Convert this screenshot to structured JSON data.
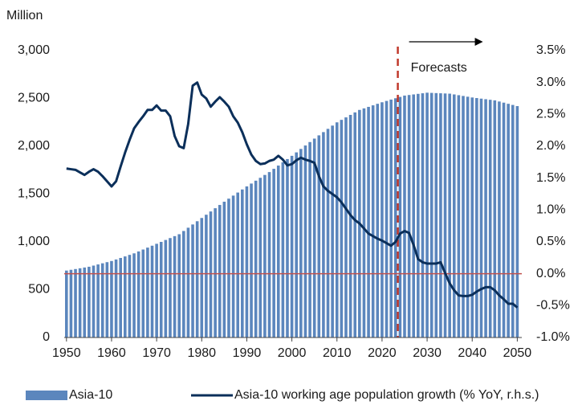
{
  "chart_data": {
    "type": "bar_line",
    "y_axis_label": "Million",
    "annotation": {
      "text": "Forecasts",
      "x": 2023.5
    },
    "x": [
      1950,
      1951,
      1952,
      1953,
      1954,
      1955,
      1956,
      1957,
      1958,
      1959,
      1960,
      1961,
      1962,
      1963,
      1964,
      1965,
      1966,
      1967,
      1968,
      1969,
      1970,
      1971,
      1972,
      1973,
      1974,
      1975,
      1976,
      1977,
      1978,
      1979,
      1980,
      1981,
      1982,
      1983,
      1984,
      1985,
      1986,
      1987,
      1988,
      1989,
      1990,
      1991,
      1992,
      1993,
      1994,
      1995,
      1996,
      1997,
      1998,
      1999,
      2000,
      2001,
      2002,
      2003,
      2004,
      2005,
      2006,
      2007,
      2008,
      2009,
      2010,
      2011,
      2012,
      2013,
      2014,
      2015,
      2016,
      2017,
      2018,
      2019,
      2020,
      2021,
      2022,
      2023,
      2024,
      2025,
      2026,
      2027,
      2028,
      2029,
      2030,
      2031,
      2032,
      2033,
      2034,
      2035,
      2036,
      2037,
      2038,
      2039,
      2040,
      2041,
      2042,
      2043,
      2044,
      2045,
      2046,
      2047,
      2048,
      2049,
      2050
    ],
    "series": [
      {
        "name": "Asia-10",
        "type": "bar",
        "color": "#5b86bd",
        "values": [
          700,
          708,
          716,
          724,
          732,
          740,
          752,
          764,
          776,
          788,
          800,
          816,
          832,
          848,
          864,
          880,
          900,
          920,
          940,
          960,
          980,
          1000,
          1020,
          1040,
          1060,
          1080,
          1114,
          1148,
          1182,
          1216,
          1250,
          1284,
          1318,
          1352,
          1386,
          1420,
          1452,
          1484,
          1516,
          1548,
          1580,
          1610,
          1640,
          1670,
          1700,
          1730,
          1764,
          1798,
          1832,
          1866,
          1900,
          1936,
          1972,
          2008,
          2044,
          2080,
          2114,
          2148,
          2182,
          2216,
          2250,
          2276,
          2302,
          2328,
          2354,
          2380,
          2396,
          2412,
          2428,
          2444,
          2460,
          2474,
          2488,
          2502,
          2516,
          2530,
          2536,
          2542,
          2548,
          2554,
          2560,
          2558,
          2556,
          2554,
          2552,
          2550,
          2542,
          2534,
          2526,
          2518,
          2510,
          2504,
          2498,
          2492,
          2486,
          2480,
          2468,
          2456,
          2444,
          2432,
          2420
        ]
      },
      {
        "name": "Asia-10 working age population growth (% YoY, r.h.s.)",
        "type": "line",
        "axis": "y2",
        "color": "#0b2f5a",
        "values": [
          1.65,
          1.64,
          1.63,
          1.59,
          1.55,
          1.6,
          1.64,
          1.6,
          1.53,
          1.45,
          1.37,
          1.45,
          1.68,
          1.9,
          2.1,
          2.28,
          2.38,
          2.47,
          2.57,
          2.57,
          2.64,
          2.56,
          2.56,
          2.47,
          2.16,
          2.0,
          1.97,
          2.35,
          2.95,
          3.0,
          2.81,
          2.75,
          2.62,
          2.7,
          2.77,
          2.7,
          2.62,
          2.47,
          2.37,
          2.22,
          2.03,
          1.87,
          1.77,
          1.72,
          1.73,
          1.77,
          1.79,
          1.85,
          1.79,
          1.7,
          1.72,
          1.78,
          1.82,
          1.79,
          1.77,
          1.74,
          1.53,
          1.37,
          1.3,
          1.25,
          1.2,
          1.12,
          1.02,
          0.92,
          0.84,
          0.79,
          0.71,
          0.63,
          0.59,
          0.55,
          0.52,
          0.48,
          0.44,
          0.5,
          0.63,
          0.67,
          0.64,
          0.45,
          0.23,
          0.18,
          0.16,
          0.16,
          0.16,
          0.18,
          0.01,
          -0.15,
          -0.26,
          -0.34,
          -0.35,
          -0.35,
          -0.33,
          -0.28,
          -0.24,
          -0.21,
          -0.21,
          -0.26,
          -0.34,
          -0.4,
          -0.47,
          -0.47,
          -0.53
        ]
      }
    ],
    "reference_line": {
      "axis": "y2",
      "value": 0,
      "color": "#c0504d"
    },
    "xlim": [
      1949.5,
      2051
    ],
    "xticks": [
      1950,
      1960,
      1970,
      1980,
      1990,
      2000,
      2010,
      2020,
      2030,
      2040,
      2050
    ],
    "ylim": [
      0,
      3000
    ],
    "yticks": [
      0,
      500,
      {
        "value": 1000,
        "label": "1,000"
      },
      {
        "value": 1500,
        "label": "1,500"
      },
      {
        "value": 2000,
        "label": "2,000"
      },
      {
        "value": 2500,
        "label": "2,500"
      },
      {
        "value": 3000,
        "label": "3,000"
      }
    ],
    "y2lim": [
      -1,
      3.5
    ],
    "y2ticks": [
      {
        "value": -1,
        "label": "-1.0%"
      },
      {
        "value": -0.5,
        "label": "-0.5%"
      },
      {
        "value": 0,
        "label": "0.0%"
      },
      {
        "value": 0.5,
        "label": "0.5%"
      },
      {
        "value": 1,
        "label": "1.0%"
      },
      {
        "value": 1.5,
        "label": "1.5%"
      },
      {
        "value": 2,
        "label": "2.0%"
      },
      {
        "value": 2.5,
        "label": "2.5%"
      },
      {
        "value": 3,
        "label": "3.0%"
      },
      {
        "value": 3.5,
        "label": "3.5%"
      }
    ]
  }
}
